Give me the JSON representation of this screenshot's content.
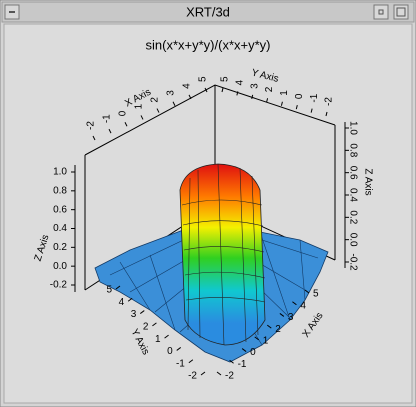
{
  "window": {
    "title": "XRT/3d"
  },
  "chart": {
    "type": "surface3d",
    "title": "sin(x*x+y*y)/(x*x+y*y)",
    "x_axis": {
      "label": "X Axis",
      "ticks": [
        -2,
        -1,
        0,
        1,
        2,
        3,
        4,
        5
      ]
    },
    "y_axis": {
      "label": "Y Axis",
      "ticks": [
        5,
        4,
        3,
        2,
        1,
        0,
        -1,
        -2
      ]
    },
    "z_axis": {
      "label": "Z Axis",
      "ticks": [
        -0.2,
        {
          "value": 0,
          "label": "0.0"
        },
        0.2,
        0.4,
        0.6,
        0.8,
        {
          "value": 1,
          "label": "1.0"
        }
      ]
    }
  }
}
